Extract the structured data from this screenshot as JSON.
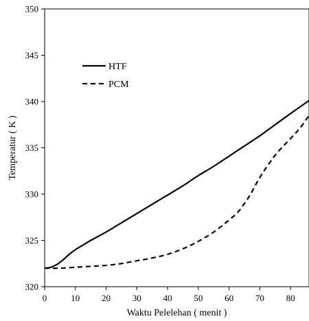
{
  "chart_data": {
    "type": "line",
    "xlabel": "Waktu Pelelehan ( menit )",
    "ylabel": "Temperatur ( K )",
    "xlim": [
      0,
      86
    ],
    "ylim": [
      320,
      350
    ],
    "xticks": [
      0,
      10,
      20,
      30,
      40,
      50,
      60,
      70,
      80
    ],
    "yticks": [
      320,
      325,
      330,
      335,
      340,
      345,
      350
    ],
    "grid": false,
    "legend_position": "top-left",
    "series": [
      {
        "name": "HTF",
        "style": "solid",
        "color": "#000000",
        "x": [
          0,
          2,
          4,
          6,
          8,
          10,
          12,
          15,
          20,
          25,
          30,
          35,
          40,
          45,
          50,
          55,
          60,
          65,
          70,
          75,
          80,
          86
        ],
        "y": [
          322.0,
          322.1,
          322.4,
          322.9,
          323.5,
          324.0,
          324.4,
          325.0,
          325.9,
          326.9,
          327.9,
          328.9,
          329.9,
          330.9,
          332.0,
          333.0,
          334.1,
          335.2,
          336.3,
          337.5,
          338.7,
          340.1
        ]
      },
      {
        "name": "PCM",
        "style": "dashed",
        "color": "#000000",
        "x": [
          0,
          5,
          10,
          15,
          20,
          25,
          30,
          35,
          40,
          45,
          50,
          55,
          60,
          63,
          65,
          67,
          70,
          73,
          76,
          80,
          83,
          86
        ],
        "y": [
          322.0,
          322.0,
          322.1,
          322.2,
          322.3,
          322.5,
          322.8,
          323.1,
          323.5,
          324.1,
          324.9,
          325.9,
          327.2,
          328.1,
          329.0,
          330.0,
          331.8,
          333.3,
          334.6,
          336.0,
          337.1,
          338.5
        ]
      }
    ]
  }
}
